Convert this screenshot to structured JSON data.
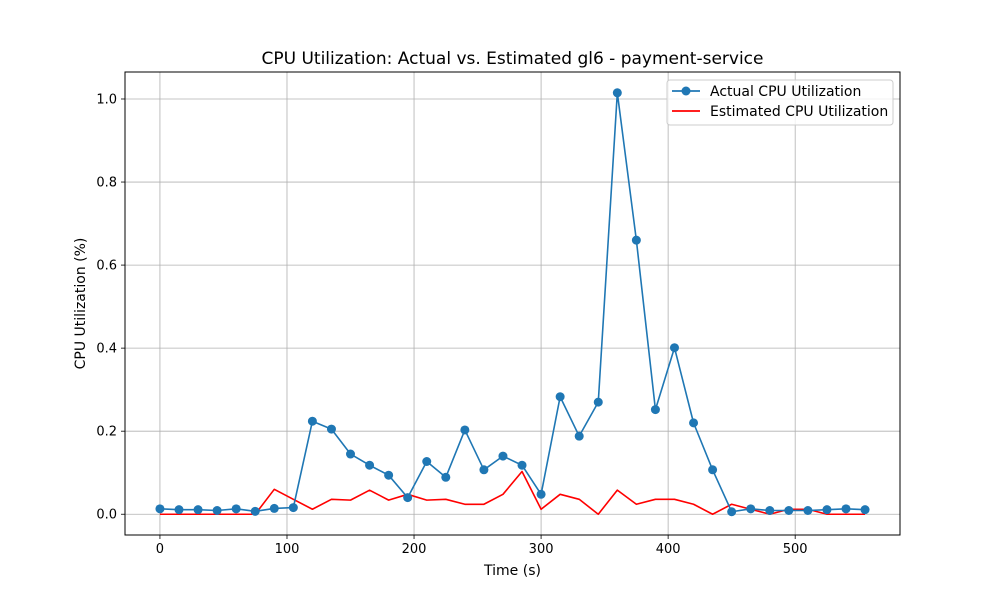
{
  "chart_data": {
    "type": "line",
    "title": "CPU Utilization: Actual vs. Estimated gl6 - payment-service",
    "xlabel": "Time (s)",
    "ylabel": "CPU Utilization (%)",
    "xlim": [
      -27.5,
      582.5
    ],
    "ylim": [
      -0.05,
      1.065
    ],
    "xticks": [
      0,
      100,
      200,
      300,
      400,
      500
    ],
    "yticks": [
      0.0,
      0.2,
      0.4,
      0.6,
      0.8,
      1.0
    ],
    "xtick_labels": [
      "0",
      "100",
      "200",
      "300",
      "400",
      "500"
    ],
    "ytick_labels": [
      "0.0",
      "0.2",
      "0.4",
      "0.6",
      "0.8",
      "1.0"
    ],
    "grid": true,
    "legend_position": "top-right",
    "x": [
      0,
      15,
      30,
      45,
      60,
      75,
      90,
      105,
      120,
      135,
      150,
      165,
      180,
      195,
      210,
      225,
      240,
      255,
      270,
      285,
      300,
      315,
      330,
      345,
      360,
      375,
      390,
      405,
      420,
      435,
      450,
      465,
      480,
      495,
      510,
      525,
      540,
      555
    ],
    "series": [
      {
        "name": "Actual CPU Utilization",
        "color": "#1f77b4",
        "marker": "circle",
        "values": [
          0.013,
          0.011,
          0.011,
          0.009,
          0.013,
          0.007,
          0.014,
          0.016,
          0.224,
          0.205,
          0.145,
          0.118,
          0.094,
          0.04,
          0.127,
          0.089,
          0.203,
          0.107,
          0.14,
          0.118,
          0.048,
          0.283,
          0.188,
          0.27,
          1.015,
          0.66,
          0.252,
          0.401,
          0.22,
          0.107,
          0.006,
          0.013,
          0.009,
          0.009,
          0.009,
          0.011,
          0.013,
          0.011
        ]
      },
      {
        "name": "Estimated CPU Utilization",
        "color": "#ff0000",
        "marker": "none",
        "values": [
          0.0,
          0.0,
          0.0,
          0.0,
          0.0,
          0.0,
          0.06,
          0.036,
          0.012,
          0.036,
          0.034,
          0.058,
          0.034,
          0.048,
          0.034,
          0.036,
          0.024,
          0.024,
          0.048,
          0.103,
          0.012,
          0.048,
          0.036,
          0.0,
          0.058,
          0.024,
          0.036,
          0.036,
          0.024,
          0.0,
          0.024,
          0.012,
          0.0,
          0.012,
          0.012,
          0.0,
          0.0,
          0.0
        ]
      }
    ]
  }
}
